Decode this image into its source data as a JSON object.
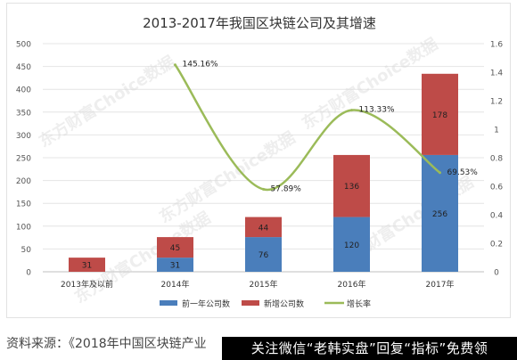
{
  "chart_data": {
    "type": "bar",
    "title": "2013-2017年我国区块链公司及其增速",
    "categories": [
      "2013年及以前",
      "2014年",
      "2015年",
      "2016年",
      "2017年"
    ],
    "series": [
      {
        "name": "前一年公司数",
        "type": "bar",
        "stack": "total",
        "color": "#4a7ebb",
        "values": [
          0,
          31,
          76,
          120,
          256
        ]
      },
      {
        "name": "新增公司数",
        "type": "bar",
        "stack": "total",
        "color": "#be4b48",
        "values": [
          31,
          45,
          44,
          136,
          178
        ]
      },
      {
        "name": "增长率",
        "type": "line",
        "axis": "right",
        "color": "#9bbb59",
        "values": [
          null,
          1.4516,
          0.5789,
          1.1333,
          0.6953
        ],
        "labels": [
          null,
          "145.16%",
          "57.89%",
          "113.33%",
          "69.53%"
        ]
      }
    ],
    "bar_labels": {
      "previous": [
        "",
        "31",
        "76",
        "120",
        "256"
      ],
      "new": [
        "31",
        "45",
        "44",
        "136",
        "178"
      ]
    },
    "left_axis": {
      "ylim": [
        0,
        500
      ],
      "ticks": [
        "0",
        "50",
        "100",
        "150",
        "200",
        "250",
        "300",
        "350",
        "400",
        "450",
        "500"
      ]
    },
    "right_axis": {
      "ylim": [
        0,
        1.6
      ],
      "ticks": [
        "0",
        "0.2",
        "0.4",
        "0.6",
        "0.8",
        "1",
        "1.2",
        "1.4",
        "1.6"
      ]
    },
    "legend_position": "bottom",
    "grid": true
  },
  "watermark": "东方财富Choice数据",
  "source": "资料来源：《2018年中国区块链产业",
  "promo": "关注微信“老韩实盘”回复“指标”免费领"
}
